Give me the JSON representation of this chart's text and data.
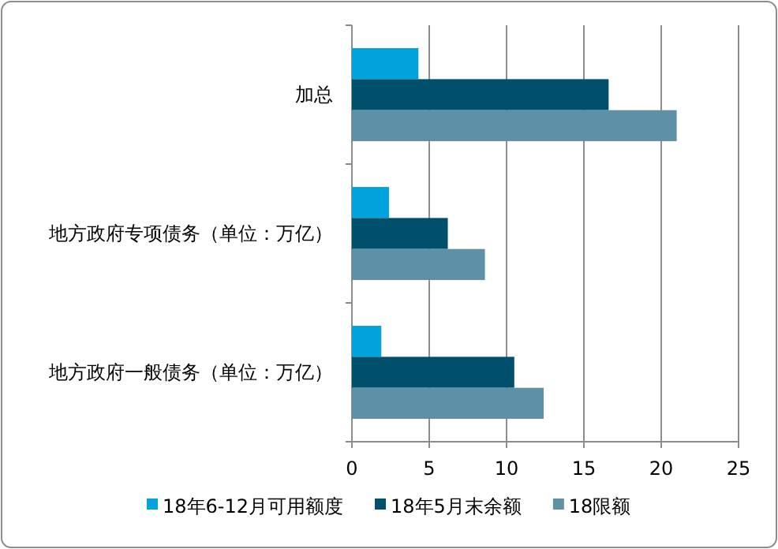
{
  "chart_data": {
    "type": "bar",
    "orientation": "horizontal",
    "categories": [
      "加总",
      "地方政府专项债务（单位：万亿）",
      "地方政府一般债务（单位：万亿）"
    ],
    "series": [
      {
        "name": "18年6-12月可用额度",
        "color": "#00a3dc",
        "values": [
          4.3,
          2.4,
          1.9
        ]
      },
      {
        "name": "18年5月末余额",
        "color": "#00506b",
        "values": [
          16.6,
          6.2,
          10.5
        ]
      },
      {
        "name": "18限额",
        "color": "#5e91a7",
        "values": [
          21.0,
          8.6,
          12.4
        ]
      }
    ],
    "xlim": [
      0,
      25
    ],
    "xticks": [
      0,
      5,
      10,
      15,
      20,
      25
    ],
    "grid": "x",
    "legend": "bottom"
  }
}
